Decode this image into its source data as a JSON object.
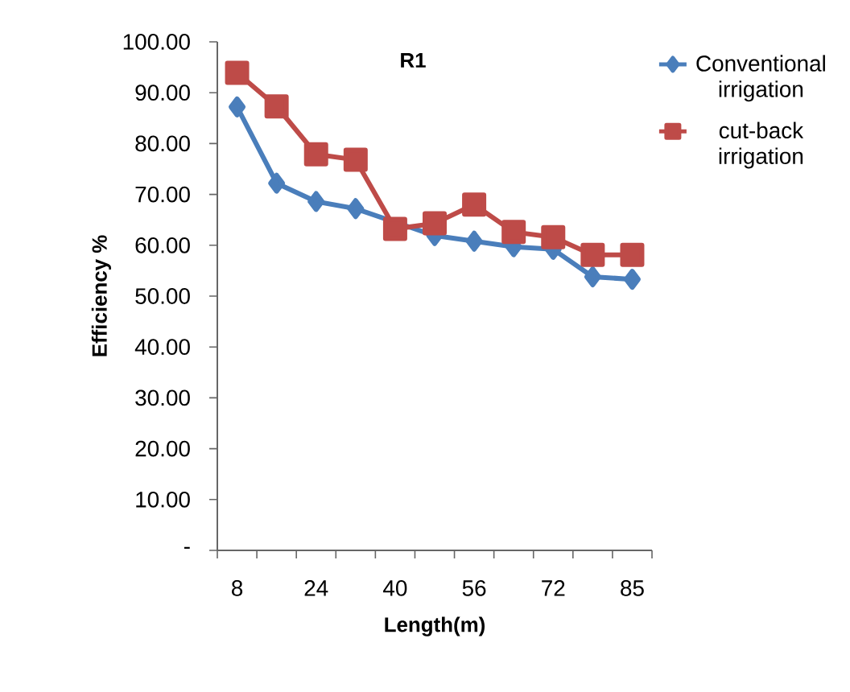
{
  "chart_data": {
    "type": "line",
    "title": "R1",
    "xlabel": "Length(m)",
    "ylabel": "Efficiency %",
    "categories": [
      "8",
      null,
      "24",
      null,
      "40",
      null,
      "56",
      null,
      "72",
      null,
      "85"
    ],
    "series": [
      {
        "name": "Conventional irrigation",
        "color": "#4a7ebb",
        "marker": "diamond",
        "values": [
          87.2,
          72.2,
          68.6,
          67.2,
          null,
          61.9,
          60.8,
          59.7,
          59.2,
          53.8,
          53.3
        ]
      },
      {
        "name": "cut-back irrigation",
        "color": "#be4b48",
        "marker": "square",
        "values": [
          93.9,
          87.3,
          77.9,
          76.8,
          63.2,
          64.3,
          68.0,
          62.6,
          61.6,
          58.1,
          58.1
        ]
      }
    ],
    "ylim": [
      0,
      100
    ],
    "yticks": [
      {
        "value": 0,
        "label": "-"
      },
      {
        "value": 10,
        "label": "10.00"
      },
      {
        "value": 20,
        "label": "20.00"
      },
      {
        "value": 30,
        "label": "30.00"
      },
      {
        "value": 40,
        "label": "40.00"
      },
      {
        "value": 50,
        "label": "50.00"
      },
      {
        "value": 60,
        "label": "60.00"
      },
      {
        "value": 70,
        "label": "70.00"
      },
      {
        "value": 80,
        "label": "80.00"
      },
      {
        "value": 90,
        "label": "90.00"
      },
      {
        "value": 100,
        "label": "100.00"
      }
    ],
    "grid": false,
    "legend": "top right"
  }
}
